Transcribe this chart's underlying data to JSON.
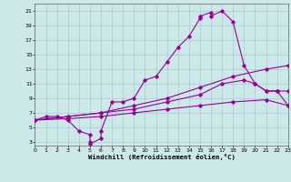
{
  "title": "",
  "xlabel": "Windchill (Refroidissement éolien,°C)",
  "background_color": "#cce8e8",
  "line_color": "#990099",
  "xlim": [
    0,
    23
  ],
  "ylim": [
    2.5,
    22
  ],
  "xticks": [
    0,
    1,
    2,
    3,
    4,
    5,
    6,
    7,
    8,
    9,
    10,
    11,
    12,
    13,
    14,
    15,
    16,
    17,
    18,
    19,
    20,
    21,
    22,
    23
  ],
  "yticks": [
    3,
    5,
    7,
    9,
    11,
    13,
    15,
    17,
    19,
    21
  ],
  "grid_color": "#aacccc",
  "series1_x": [
    0,
    1,
    2,
    3,
    4,
    5,
    5,
    5,
    6,
    6,
    7,
    8,
    9,
    10,
    11,
    12,
    13,
    14,
    15,
    15,
    16,
    16,
    17,
    18,
    19,
    20,
    21,
    22,
    23
  ],
  "series1_y": [
    6,
    6.5,
    6.5,
    6,
    4.5,
    4,
    3,
    2.7,
    3.5,
    4.5,
    8.5,
    8.5,
    9,
    11.5,
    12,
    14,
    16,
    17.5,
    20,
    20.3,
    20.8,
    20.3,
    21,
    19.5,
    13.5,
    11,
    10,
    10,
    8
  ],
  "series2_x": [
    0,
    3,
    6,
    9,
    12,
    15,
    17,
    19,
    20,
    21,
    22,
    23
  ],
  "series2_y": [
    6,
    6.5,
    7,
    7.5,
    8.5,
    9.5,
    11,
    11.5,
    11,
    10,
    10,
    10
  ],
  "series3_x": [
    0,
    3,
    6,
    9,
    12,
    15,
    18,
    21,
    23
  ],
  "series3_y": [
    6,
    6.5,
    7,
    8,
    9,
    10.5,
    12,
    13,
    13.5
  ],
  "series4_x": [
    0,
    3,
    6,
    9,
    12,
    15,
    18,
    21,
    23
  ],
  "series4_y": [
    6,
    6.2,
    6.5,
    7,
    7.5,
    8,
    8.5,
    8.8,
    8
  ]
}
